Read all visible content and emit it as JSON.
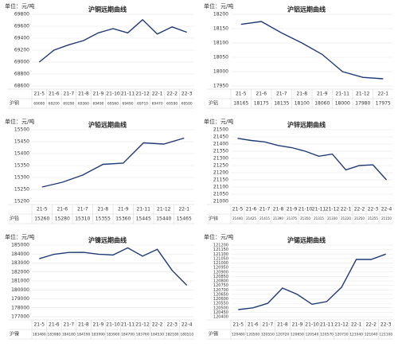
{
  "chart_data": [
    {
      "type": "line",
      "title": "沪铜远期曲线",
      "unit": "单位：元/吨",
      "categories": [
        "21-5",
        "21-6",
        "21-7",
        "21-8",
        "21-9",
        "21-10",
        "21-11",
        "21-12",
        "22-1",
        "22-2",
        "22-3"
      ],
      "series": [
        {
          "name": "沪铜",
          "color": "#1f3a78",
          "values": [
            69000,
            69200,
            69290,
            69360,
            69490,
            69560,
            69490,
            69710,
            69470,
            69590,
            69500
          ]
        }
      ],
      "ylim": [
        68600,
        69800
      ],
      "yticks": [
        68600,
        68800,
        69000,
        69200,
        69400,
        69600,
        69800
      ],
      "grid": true
    },
    {
      "type": "line",
      "title": "沪铝远期曲线",
      "unit": "单位：元/吨",
      "categories": [
        "21-5",
        "21-6",
        "21-7",
        "21-8",
        "21-9",
        "21-11",
        "21-12",
        "22-1"
      ],
      "series": [
        {
          "name": "沪铝",
          "color": "#1f3a78",
          "values": [
            18165,
            18175,
            18135,
            18100,
            18060,
            18000,
            17980,
            17975
          ]
        }
      ],
      "ylim": [
        17950,
        18200
      ],
      "yticks": [
        17950,
        18000,
        18050,
        18100,
        18150,
        18200
      ],
      "grid": true
    },
    {
      "type": "line",
      "title": "沪铅远期曲线",
      "unit": "单位：元/吨",
      "categories": [
        "21-5",
        "21-6",
        "21-7",
        "21-8",
        "21-9",
        "21-11",
        "21-12",
        "22-1"
      ],
      "series": [
        {
          "name": "沪铅",
          "color": "#1f3a78",
          "values": [
            15260,
            15280,
            15310,
            15355,
            15360,
            15445,
            15440,
            15465
          ]
        }
      ],
      "ylim": [
        15200,
        15500
      ],
      "yticks": [
        15200,
        15250,
        15300,
        15350,
        15400,
        15450,
        15500
      ],
      "grid": true
    },
    {
      "type": "line",
      "title": "沪锌远期曲线",
      "unit": "单位：元/吨",
      "categories": [
        "21-5",
        "21-6",
        "21-7",
        "21-8",
        "21-9",
        "21-10",
        "21-11",
        "21-12",
        "22-1",
        "22-2",
        "22-3",
        "22-4"
      ],
      "series": [
        {
          "name": "沪锌",
          "color": "#1f3a78",
          "values": [
            21440,
            21425,
            21415,
            21390,
            21375,
            21350,
            21315,
            21330,
            21220,
            21250,
            21255,
            21150
          ]
        }
      ],
      "ylim": [
        21000,
        21500
      ],
      "yticks": [
        21000,
        21050,
        21100,
        21150,
        21200,
        21250,
        21300,
        21350,
        21400,
        21450,
        21500
      ],
      "grid": true
    },
    {
      "type": "line",
      "title": "沪镍远期曲线",
      "unit": "单位：元/吨",
      "categories": [
        "21-5",
        "21-6",
        "21-7",
        "21-8",
        "21-9",
        "21-10",
        "21-11",
        "21-12",
        "22-2",
        "22-3",
        "22-4"
      ],
      "series": [
        {
          "name": "沪镍",
          "color": "#1f3a78",
          "values": [
            183480,
            183980,
            184180,
            184190,
            183990,
            183900,
            184700,
            183760,
            184530,
            182180,
            180510
          ]
        }
      ],
      "ylim": [
        177000,
        185000
      ],
      "yticks": [
        177000,
        178000,
        179000,
        180000,
        181000,
        182000,
        183000,
        184000,
        185000
      ],
      "grid": true
    },
    {
      "type": "line",
      "title": "沪锡远期曲线",
      "unit": "单位：元/吨",
      "categories": [
        "21-5",
        "21-6",
        "21-7",
        "21-8",
        "21-9",
        "21-10",
        "21-11",
        "21-12",
        "22-1",
        "22-2",
        "22-3"
      ],
      "series": [
        {
          "name": "沪锡",
          "color": "#1f3a78",
          "values": [
            120480,
            120500,
            120550,
            120720,
            120650,
            120540,
            120570,
            120730,
            121040,
            121040,
            121100
          ]
        }
      ],
      "ylim": [
        120400,
        121200
      ],
      "yticks": [
        120400,
        120450,
        120500,
        120550,
        120600,
        120650,
        120700,
        120750,
        120800,
        120850,
        120900,
        120950,
        121000,
        121050,
        121100,
        121150,
        121200
      ],
      "grid": true
    }
  ]
}
